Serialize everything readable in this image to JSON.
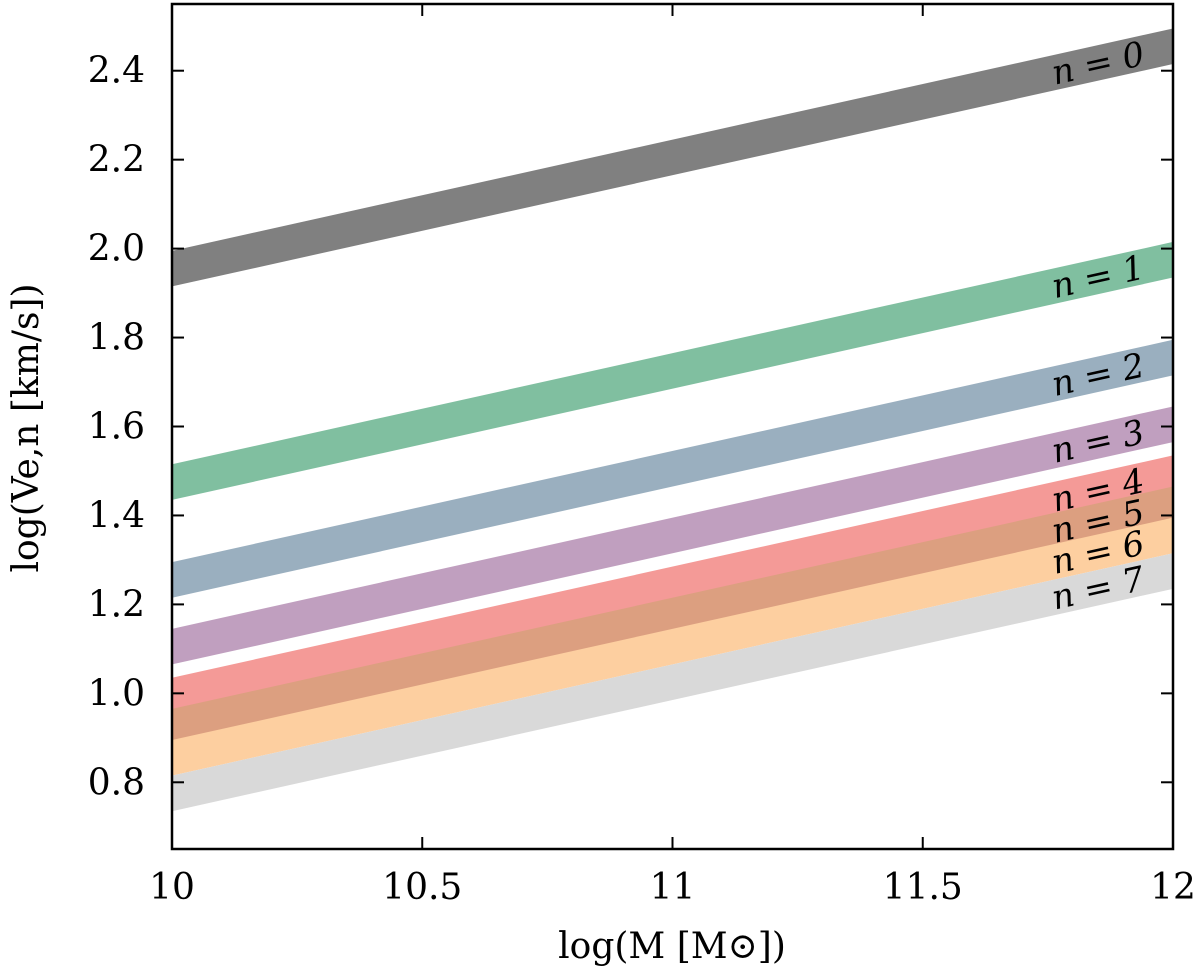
{
  "chart_data": {
    "type": "area",
    "title": "",
    "xlabel": "log(M [M⊙])",
    "ylabel": "log(Ve,n [km/s])",
    "xlim": [
      10,
      12
    ],
    "ylim": [
      0.65,
      2.55
    ],
    "x_ticks": [
      10,
      10.5,
      11,
      11.5,
      12
    ],
    "x_tick_labels": [
      "10",
      "10.5",
      "11",
      "11.5",
      "12"
    ],
    "y_ticks": [
      0.8,
      1.0,
      1.2,
      1.4,
      1.6,
      1.8,
      2.0,
      2.2,
      2.4
    ],
    "y_tick_labels": [
      "0.8",
      "1.0",
      "1.2",
      "1.4",
      "1.6",
      "1.8",
      "2.0",
      "2.2",
      "2.4"
    ],
    "grid": false,
    "legend": "inline labels at right end of each band",
    "series": [
      {
        "name": "n = 0",
        "color": "#808080",
        "x": [
          10,
          12
        ],
        "lower": [
          1.915,
          2.415
        ],
        "upper": [
          1.995,
          2.495
        ]
      },
      {
        "name": "n = 1",
        "color": "#80bfa0",
        "x": [
          10,
          12
        ],
        "lower": [
          1.435,
          1.935
        ],
        "upper": [
          1.515,
          2.015
        ]
      },
      {
        "name": "n = 2",
        "color": "#9aafbf",
        "x": [
          10,
          12
        ],
        "lower": [
          1.215,
          1.715
        ],
        "upper": [
          1.295,
          1.795
        ]
      },
      {
        "name": "n = 3",
        "color": "#c09fbf",
        "x": [
          10,
          12
        ],
        "lower": [
          1.065,
          1.565
        ],
        "upper": [
          1.145,
          1.645
        ]
      },
      {
        "name": "n = 4",
        "color": "#f49a97",
        "x": [
          10,
          12
        ],
        "lower": [
          0.955,
          1.455
        ],
        "upper": [
          1.035,
          1.535
        ]
      },
      {
        "name": "n = 5",
        "color": "#dc9f80",
        "x": [
          10,
          12
        ],
        "lower": [
          0.885,
          1.385
        ],
        "upper": [
          0.965,
          1.465
        ]
      },
      {
        "name": "n = 6",
        "color": "#fdcfa0",
        "x": [
          10,
          12
        ],
        "lower": [
          0.815,
          1.315
        ],
        "upper": [
          0.895,
          1.395
        ]
      },
      {
        "name": "n = 7",
        "color": "#d9d9d9",
        "x": [
          10,
          12
        ],
        "lower": [
          0.735,
          1.235
        ],
        "upper": [
          0.815,
          1.315
        ]
      }
    ]
  }
}
